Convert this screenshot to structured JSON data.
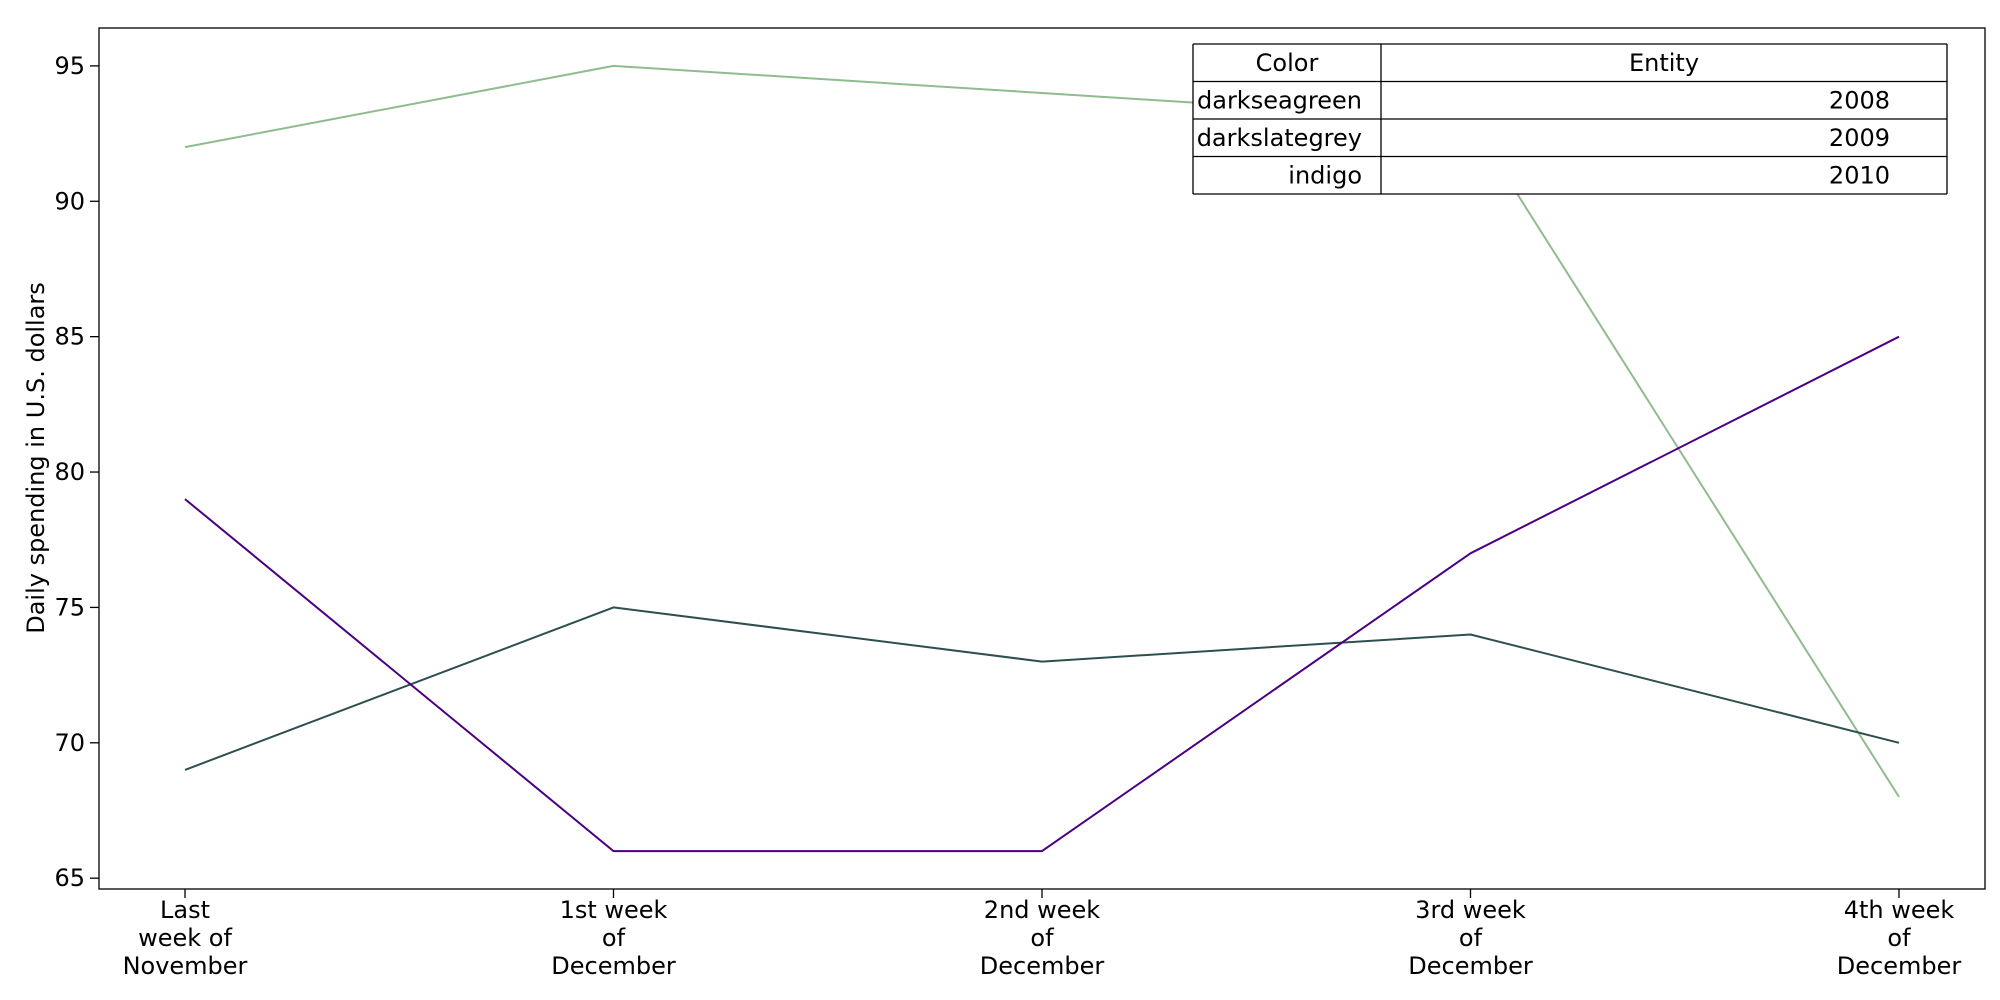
{
  "chart_data": {
    "type": "line",
    "categories": [
      [
        "Last",
        "week of",
        "November"
      ],
      [
        "1st week",
        "of",
        "December"
      ],
      [
        "2nd week",
        "of",
        "December"
      ],
      [
        "3rd week",
        "of",
        "December"
      ],
      [
        "4th week",
        "of",
        "December"
      ]
    ],
    "series": [
      {
        "name": "2008",
        "color_name": "darkseagreen",
        "color": "#8fbc8f",
        "values": [
          92,
          95,
          94,
          93,
          68
        ]
      },
      {
        "name": "2009",
        "color_name": "darkslategrey",
        "color": "#2f4f4f",
        "values": [
          69,
          75,
          73,
          74,
          70
        ]
      },
      {
        "name": "2010",
        "color_name": "indigo",
        "color": "#4b0082",
        "values": [
          79,
          66,
          66,
          77,
          85
        ]
      }
    ],
    "title": "",
    "xlabel": "",
    "ylabel": "Daily spending in U.S. dollars",
    "ylim": [
      64.6,
      96.4
    ],
    "yticks": [
      65,
      70,
      75,
      80,
      85,
      90,
      95
    ],
    "grid": false,
    "legend": {
      "placement": "top-right",
      "style": "table",
      "headers": [
        "Color",
        "Entity"
      ]
    }
  }
}
